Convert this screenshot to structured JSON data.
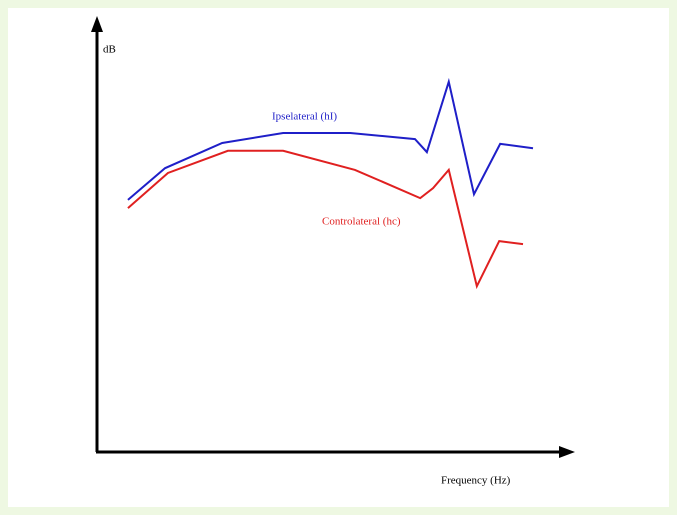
{
  "chart_data": {
    "type": "line",
    "y_label": "dB",
    "x_label": "Frequency (Hz)",
    "xlim": [
      0,
      100
    ],
    "ylim": [
      0,
      100
    ],
    "series": [
      {
        "name": "Ipselateral (hI)",
        "color": "#1f1fc8",
        "x": [
          6.5,
          14.3,
          26.3,
          39.1,
          53.2,
          66.8,
          69.3,
          73.9,
          79.2,
          84.7,
          91.6
        ],
        "values": [
          58.1,
          65.4,
          71.2,
          73.5,
          73.5,
          72.1,
          69.1,
          85.3,
          59.4,
          71.0,
          70.0
        ]
      },
      {
        "name": "Controlateral (hc)",
        "color": "#e02020",
        "x": [
          6.5,
          14.9,
          27.5,
          39.1,
          54.2,
          67.9,
          70.6,
          73.9,
          79.8,
          84.5,
          89.5
        ],
        "values": [
          56.2,
          64.3,
          69.4,
          69.4,
          65.0,
          58.5,
          60.8,
          65.0,
          38.2,
          48.6,
          47.9
        ]
      }
    ]
  }
}
